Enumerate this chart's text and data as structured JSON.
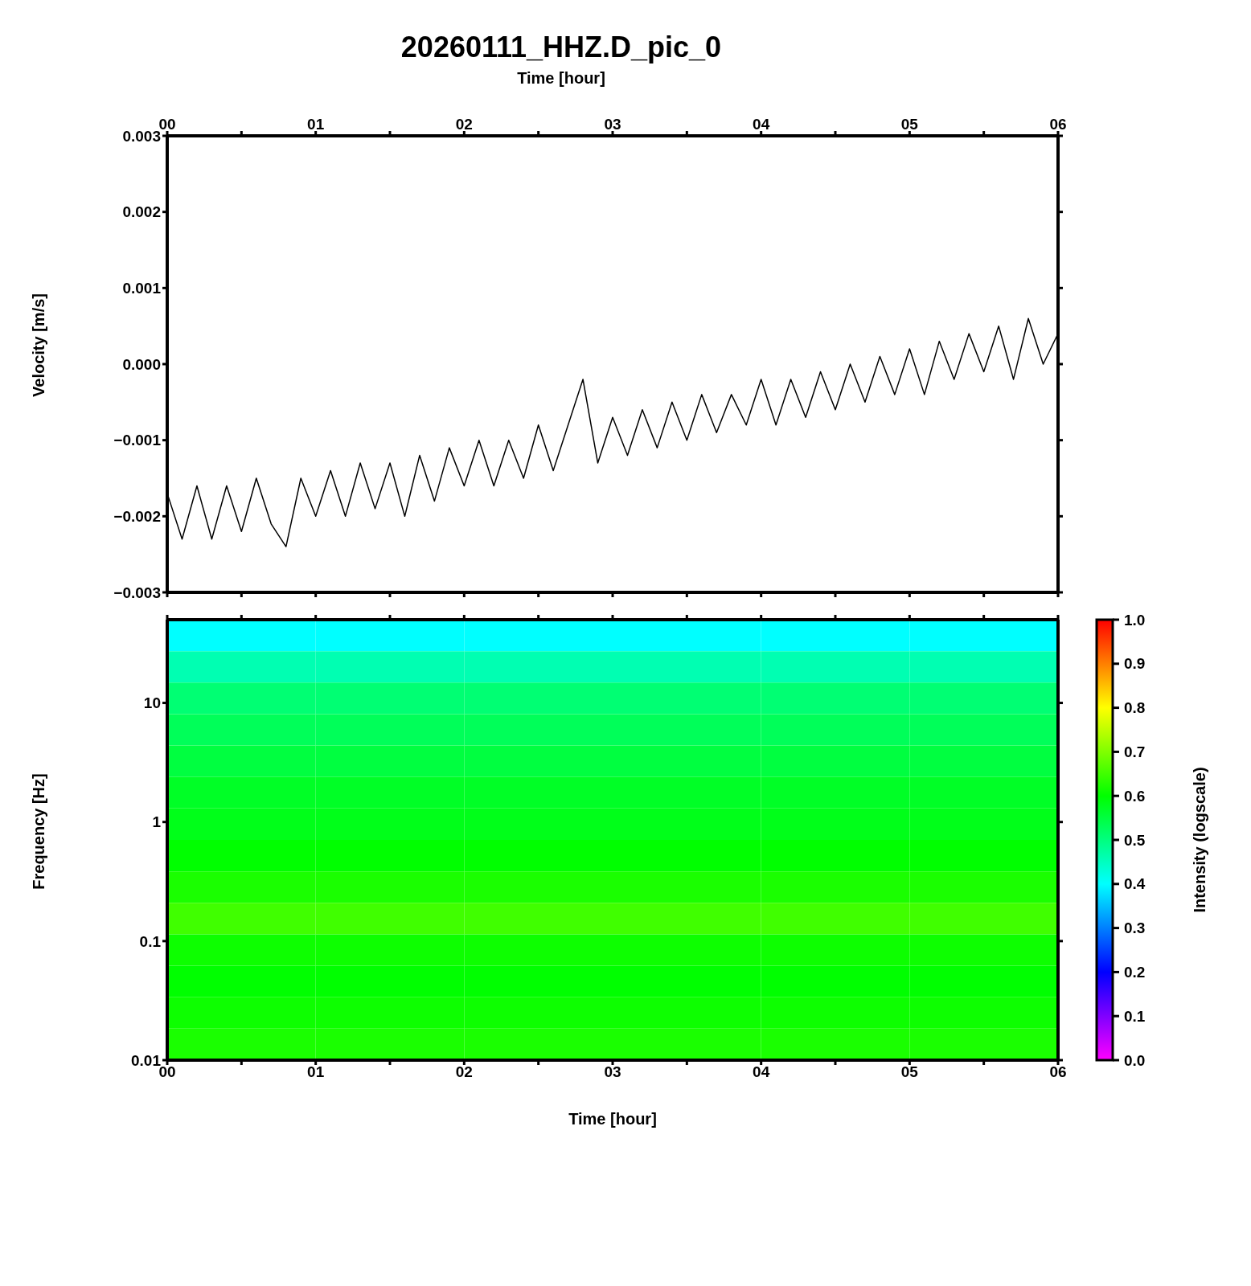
{
  "chart_data": [
    {
      "type": "line",
      "title": "20260111_HHZ.D_pic_0",
      "xlabel": "Time [hour]",
      "ylabel": "Velocity [m/s]",
      "xlim": [
        0,
        6
      ],
      "xticks": [
        {
          "value": 0,
          "label": "00"
        },
        {
          "value": 0.5,
          "label": null
        },
        {
          "value": 1,
          "label": "01"
        },
        {
          "value": 1.5,
          "label": null
        },
        {
          "value": 2,
          "label": "02"
        },
        {
          "value": 2.5,
          "label": null
        },
        {
          "value": 3,
          "label": "03"
        },
        {
          "value": 3.5,
          "label": null
        },
        {
          "value": 4,
          "label": "04"
        },
        {
          "value": 4.5,
          "label": null
        },
        {
          "value": 5,
          "label": "05"
        },
        {
          "value": 5.5,
          "label": null
        },
        {
          "value": 6,
          "label": "06"
        }
      ],
      "ylim": [
        -0.003,
        0.003
      ],
      "yticks": [
        {
          "value": -0.003,
          "label": "−0.003"
        },
        {
          "value": -0.002,
          "label": "−0.002"
        },
        {
          "value": -0.001,
          "label": "−0.001"
        },
        {
          "value": 0,
          "label": "0.000"
        },
        0.001,
        0.002,
        0.003
      ],
      "marker": "none",
      "line_style": "solid",
      "series": [
        {
          "color": "#000000",
          "x": [
            0,
            0.1,
            0.2,
            0.3,
            0.4,
            0.5,
            0.6,
            0.7,
            0.8,
            0.9,
            1,
            1.1,
            1.2,
            1.3,
            1.4,
            1.5,
            1.6,
            1.7,
            1.8,
            1.9,
            2,
            2.1,
            2.2,
            2.3,
            2.4,
            2.5,
            2.6,
            2.7,
            2.8,
            2.9,
            3,
            3.1,
            3.2,
            3.3,
            3.4,
            3.5,
            3.6,
            3.7,
            3.8,
            3.9,
            4,
            4.1,
            4.2,
            4.3,
            4.4,
            4.5,
            4.6,
            4.7,
            4.8,
            4.9,
            5,
            5.1,
            5.2,
            5.3,
            5.4,
            5.5,
            5.6,
            5.7,
            5.8,
            5.9,
            6
          ],
          "values": [
            -0.0017,
            -0.0023,
            -0.0016,
            -0.0023,
            -0.0016,
            -0.0022,
            -0.0015,
            -0.0021,
            -0.0024,
            -0.0015,
            -0.002,
            -0.0014,
            -0.002,
            -0.0013,
            -0.0019,
            -0.0013,
            -0.002,
            -0.0012,
            -0.0018,
            -0.0011,
            -0.0016,
            -0.001,
            -0.0016,
            -0.001,
            -0.0015,
            -0.0008,
            -0.0014,
            -0.0008,
            -0.0002,
            -0.0013,
            -0.0007,
            -0.0012,
            -0.0006,
            -0.0011,
            -0.0005,
            -0.001,
            -0.0004,
            -0.0009,
            -0.0004,
            -0.0008,
            -0.0002,
            -0.0008,
            -0.0002,
            -0.0007,
            -0.0001,
            -0.0006,
            0,
            -0.0005,
            0.0001,
            -0.0004,
            0.0002,
            -0.0004,
            0.0003,
            -0.0002,
            0.0004,
            -0.0001,
            0.0005,
            -0.0002,
            0.0006,
            0,
            0.0004
          ]
        }
      ]
    },
    {
      "type": "heatmap",
      "xlabel": "Time [hour]",
      "ylabel": "Frequency [Hz]",
      "clabel": "Intensity (logscale)",
      "log": "y",
      "xlim": [
        0,
        6
      ],
      "xticks": [
        {
          "value": 0,
          "label": "00"
        },
        {
          "value": 0.5,
          "label": null
        },
        {
          "value": 1,
          "label": "01"
        },
        {
          "value": 1.5,
          "label": null
        },
        {
          "value": 2,
          "label": "02"
        },
        {
          "value": 2.5,
          "label": null
        },
        {
          "value": 3,
          "label": "03"
        },
        {
          "value": 3.5,
          "label": null
        },
        {
          "value": 4,
          "label": "04"
        },
        {
          "value": 4.5,
          "label": null
        },
        {
          "value": 5,
          "label": "05"
        },
        {
          "value": 5.5,
          "label": null
        },
        {
          "value": 6,
          "label": "06"
        }
      ],
      "ylim": [
        0.01,
        50
      ],
      "yticks": [
        0.01,
        0.1,
        1,
        10
      ],
      "clim": [
        0,
        1
      ],
      "cticks": [
        {
          "value": 0,
          "label": "0.0"
        },
        0.1,
        0.2,
        0.3,
        0.4,
        0.5,
        0.6,
        0.7,
        0.8,
        0.9,
        {
          "value": 1,
          "label": "1.0"
        }
      ],
      "cells": [
        [
          0.4,
          0.4,
          0.4,
          0.4,
          0.4,
          0.4
        ],
        [
          0.46,
          0.46,
          0.46,
          0.46,
          0.46,
          0.46
        ],
        [
          0.51,
          0.51,
          0.51,
          0.51,
          0.51,
          0.51
        ],
        [
          0.53,
          0.53,
          0.53,
          0.53,
          0.53,
          0.53
        ],
        [
          0.55,
          0.55,
          0.55,
          0.55,
          0.55,
          0.55
        ],
        [
          0.57,
          0.57,
          0.57,
          0.57,
          0.57,
          0.57
        ],
        [
          0.58,
          0.58,
          0.58,
          0.58,
          0.58,
          0.58
        ],
        [
          0.6,
          0.6,
          0.6,
          0.6,
          0.6,
          0.6
        ],
        [
          0.62,
          0.62,
          0.62,
          0.62,
          0.62,
          0.62
        ],
        [
          0.65,
          0.65,
          0.65,
          0.65,
          0.65,
          0.65
        ],
        [
          0.61,
          0.61,
          0.61,
          0.61,
          0.61,
          0.61
        ],
        [
          0.6,
          0.6,
          0.6,
          0.6,
          0.6,
          0.6
        ],
        [
          0.61,
          0.61,
          0.61,
          0.61,
          0.61,
          0.61
        ],
        [
          0.62,
          0.62,
          0.62,
          0.62,
          0.62,
          0.62
        ]
      ]
    }
  ]
}
